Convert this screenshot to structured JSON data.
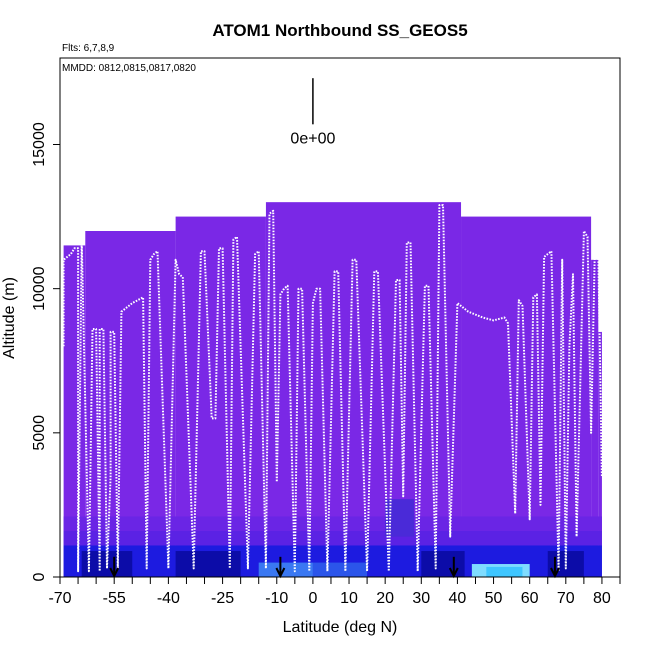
{
  "chart_data": {
    "type": "heatmap",
    "title": "ATOM1 Northbound SS_GEOS5",
    "subtitle_flights": "Flts: 6,7,8,9",
    "annotation_dates": "MMDD: 0812,0815,0817,0820",
    "xlabel": "Latitude (deg N)",
    "ylabel": "Altitude (m)",
    "xlim": [
      -70,
      85
    ],
    "ylim": [
      0,
      18000
    ],
    "xticks": [
      -70,
      -55,
      -40,
      -25,
      -10,
      0,
      10,
      20,
      30,
      40,
      50,
      60,
      70,
      80
    ],
    "xtick_labels": [
      "-70",
      "-55",
      "-40",
      "-25",
      "-10",
      "0",
      "10",
      "20",
      "30",
      "40",
      "50",
      "60",
      "70",
      "80"
    ],
    "xticks_minor": [
      -65,
      -60,
      -50,
      -45,
      -35,
      -30,
      -20,
      -15,
      -5,
      5,
      15,
      25,
      35,
      45,
      55,
      65,
      75,
      85
    ],
    "yticks": [
      0,
      5000,
      10000,
      15000
    ],
    "ytick_labels": [
      "0",
      "5000",
      "10000",
      "15000"
    ],
    "colorscale_label": "0e+00",
    "colors": {
      "background_field": "#7a28e6",
      "low_mid": "#1a1adc",
      "low_dark": "#0a0aa0",
      "low_light": "#4fc3ff",
      "flight_track": "#ffffff"
    },
    "model_top_segments": [
      {
        "x0": -69,
        "x1": -63,
        "top": 11500
      },
      {
        "x0": -63,
        "x1": -38,
        "top": 12000
      },
      {
        "x0": -38,
        "x1": -13,
        "top": 12500
      },
      {
        "x0": -13,
        "x1": 41,
        "top": 13000
      },
      {
        "x0": 41,
        "x1": 77,
        "top": 12500
      },
      {
        "x0": 77,
        "x1": 79,
        "top": 11000
      },
      {
        "x0": 79,
        "x1": 80,
        "top": 8500
      }
    ],
    "low_level_field": [
      {
        "x0": -69,
        "x1": 80,
        "y0": 0,
        "y1": 1100,
        "color": "#1d1be0"
      },
      {
        "x0": -69,
        "x1": 80,
        "y0": 1100,
        "y1": 1600,
        "color": "#5b22e4"
      },
      {
        "x0": -69,
        "x1": 80,
        "y0": 1600,
        "y1": 2100,
        "color": "#6a25e5"
      },
      {
        "x0": -64,
        "x1": -50,
        "y0": 0,
        "y1": 900,
        "color": "#0c0ca8"
      },
      {
        "x0": -38,
        "x1": -20,
        "y0": 0,
        "y1": 900,
        "color": "#0c0ca8"
      },
      {
        "x0": 30,
        "x1": 42,
        "y0": 0,
        "y1": 900,
        "color": "#0c0ca8"
      },
      {
        "x0": 65,
        "x1": 75,
        "y0": 0,
        "y1": 900,
        "color": "#0c0ca8"
      },
      {
        "x0": -15,
        "x1": 0,
        "y0": 0,
        "y1": 500,
        "color": "#3a78f2"
      },
      {
        "x0": 0,
        "x1": 15,
        "y0": 0,
        "y1": 500,
        "color": "#2b55ea"
      },
      {
        "x0": 20,
        "x1": 28,
        "y0": 1400,
        "y1": 2700,
        "color": "#4a2ad8"
      },
      {
        "x0": 44,
        "x1": 60,
        "y0": 0,
        "y1": 450,
        "color": "#7fdcff"
      },
      {
        "x0": 48,
        "x1": 58,
        "y0": 0,
        "y1": 350,
        "color": "#3fc6ff"
      }
    ],
    "flight_track": [
      [
        -69,
        8000
      ],
      [
        -69,
        11000
      ],
      [
        -67,
        11200
      ],
      [
        -66,
        11400
      ],
      [
        -65,
        11400
      ],
      [
        -65,
        200
      ],
      [
        -64,
        11700
      ],
      [
        -62,
        200
      ],
      [
        -61,
        8600
      ],
      [
        -60,
        8600
      ],
      [
        -59,
        200
      ],
      [
        -59,
        8600
      ],
      [
        -58,
        8600
      ],
      [
        -57,
        300
      ],
      [
        -56,
        3500
      ],
      [
        -56,
        8500
      ],
      [
        -55,
        8500
      ],
      [
        -54,
        300
      ],
      [
        -53,
        9200
      ],
      [
        -50,
        9500
      ],
      [
        -47,
        9700
      ],
      [
        -46,
        300
      ],
      [
        -45,
        11000
      ],
      [
        -44,
        11200
      ],
      [
        -43,
        11300
      ],
      [
        -40,
        300
      ],
      [
        -38,
        11000
      ],
      [
        -37,
        10500
      ],
      [
        -36,
        10400
      ],
      [
        -33,
        300
      ],
      [
        -31,
        11300
      ],
      [
        -30,
        11300
      ],
      [
        -28,
        5500
      ],
      [
        -27,
        5500
      ],
      [
        -26,
        11400
      ],
      [
        -25,
        11400
      ],
      [
        -23,
        300
      ],
      [
        -22,
        11700
      ],
      [
        -21,
        11800
      ],
      [
        -18,
        300
      ],
      [
        -16,
        11200
      ],
      [
        -15,
        11300
      ],
      [
        -13,
        300
      ],
      [
        -12,
        12600
      ],
      [
        -11,
        12700
      ],
      [
        -10,
        3300
      ],
      [
        -9,
        9800
      ],
      [
        -8,
        10000
      ],
      [
        -7,
        10100
      ],
      [
        -5,
        200
      ],
      [
        -4,
        10000
      ],
      [
        -3,
        10000
      ],
      [
        -1,
        200
      ],
      [
        0,
        9500
      ],
      [
        1,
        10000
      ],
      [
        2,
        10000
      ],
      [
        4,
        200
      ],
      [
        6,
        10600
      ],
      [
        7,
        10600
      ],
      [
        9,
        200
      ],
      [
        11,
        11000
      ],
      [
        12,
        11000
      ],
      [
        15,
        200
      ],
      [
        17,
        10600
      ],
      [
        18,
        10600
      ],
      [
        21,
        200
      ],
      [
        23,
        10300
      ],
      [
        24,
        10300
      ],
      [
        25,
        2800
      ],
      [
        26,
        11600
      ],
      [
        27,
        11600
      ],
      [
        29,
        200
      ],
      [
        31,
        10100
      ],
      [
        32,
        10100
      ],
      [
        34,
        300
      ],
      [
        35,
        12900
      ],
      [
        36,
        12900
      ],
      [
        38,
        1400
      ],
      [
        40,
        9500
      ],
      [
        43,
        9200
      ],
      [
        47,
        9000
      ],
      [
        50,
        8900
      ],
      [
        53,
        9000
      ],
      [
        54,
        8800
      ],
      [
        56,
        2200
      ],
      [
        57,
        9600
      ],
      [
        58,
        9400
      ],
      [
        60,
        2000
      ],
      [
        61,
        9700
      ],
      [
        62,
        9800
      ],
      [
        63,
        2500
      ],
      [
        64,
        11100
      ],
      [
        65,
        11200
      ],
      [
        66,
        11300
      ],
      [
        68,
        200
      ],
      [
        69,
        11000
      ],
      [
        70,
        300
      ],
      [
        71,
        8000
      ],
      [
        72,
        10500
      ],
      [
        73,
        1400
      ],
      [
        75,
        12000
      ],
      [
        76,
        11800
      ],
      [
        77,
        5000
      ],
      [
        78,
        11100
      ],
      [
        79,
        11200
      ],
      [
        80,
        3500
      ]
    ],
    "bottom_arrows_x": [
      -55,
      -9,
      39,
      67
    ],
    "legend_marker_x": 0,
    "legend_marker_y": [
      15700,
      17300
    ]
  }
}
